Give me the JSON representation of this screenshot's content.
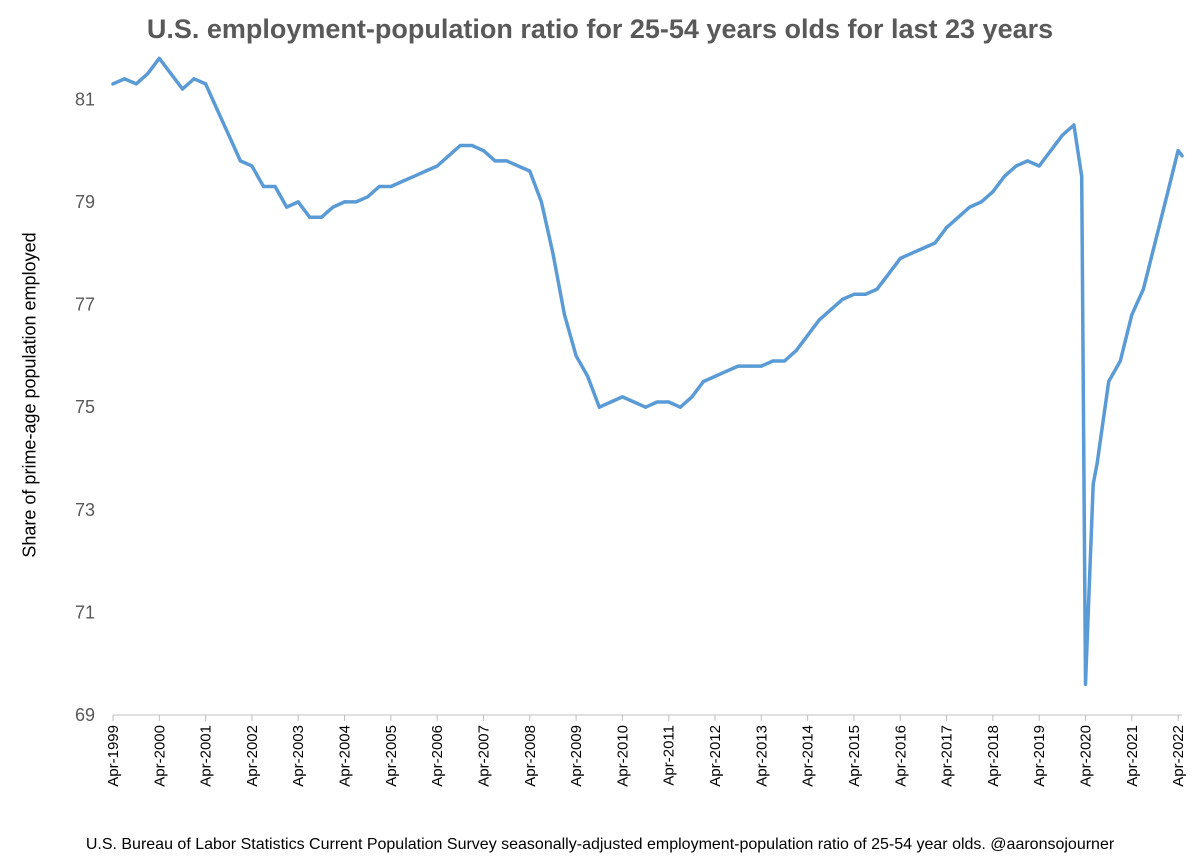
{
  "chart_data": {
    "type": "line",
    "title": "U.S. employment-population ratio for 25-54 years olds for last 23 years",
    "ylabel": "Share of prime-age population employed",
    "xlabel": "",
    "footnote": "U.S. Bureau of Labor Statistics Current Population Survey seasonally-adjusted employment-population ratio of 25-54 year olds. @aaronsojourner",
    "ylim": [
      69,
      82
    ],
    "yticks": [
      69,
      71,
      73,
      75,
      77,
      79,
      81
    ],
    "xticks": [
      "Apr-1999",
      "Apr-2000",
      "Apr-2001",
      "Apr-2002",
      "Apr-2003",
      "Apr-2004",
      "Apr-2005",
      "Apr-2006",
      "Apr-2007",
      "Apr-2008",
      "Apr-2009",
      "Apr-2010",
      "Apr-2011",
      "Apr-2012",
      "Apr-2013",
      "Apr-2014",
      "Apr-2015",
      "Apr-2016",
      "Apr-2017",
      "Apr-2018",
      "Apr-2019",
      "Apr-2020",
      "Apr-2021",
      "Apr-2022"
    ],
    "grid": false,
    "legend": "none",
    "line_color": "#5B9BD5",
    "series": [
      {
        "points": [
          [
            "Apr-1999",
            81.3
          ],
          [
            "Jul-1999",
            81.4
          ],
          [
            "Oct-1999",
            81.3
          ],
          [
            "Jan-2000",
            81.5
          ],
          [
            "Apr-2000",
            81.8
          ],
          [
            "Jul-2000",
            81.5
          ],
          [
            "Oct-2000",
            81.2
          ],
          [
            "Jan-2001",
            81.4
          ],
          [
            "Apr-2001",
            81.3
          ],
          [
            "Jul-2001",
            80.8
          ],
          [
            "Oct-2001",
            80.3
          ],
          [
            "Jan-2002",
            79.8
          ],
          [
            "Apr-2002",
            79.7
          ],
          [
            "Jul-2002",
            79.3
          ],
          [
            "Oct-2002",
            79.3
          ],
          [
            "Jan-2003",
            78.9
          ],
          [
            "Apr-2003",
            79.0
          ],
          [
            "Jul-2003",
            78.7
          ],
          [
            "Oct-2003",
            78.7
          ],
          [
            "Jan-2004",
            78.9
          ],
          [
            "Apr-2004",
            79.0
          ],
          [
            "Jul-2004",
            79.0
          ],
          [
            "Oct-2004",
            79.1
          ],
          [
            "Jan-2005",
            79.3
          ],
          [
            "Apr-2005",
            79.3
          ],
          [
            "Jul-2005",
            79.4
          ],
          [
            "Oct-2005",
            79.5
          ],
          [
            "Jan-2006",
            79.6
          ],
          [
            "Apr-2006",
            79.7
          ],
          [
            "Jul-2006",
            79.9
          ],
          [
            "Oct-2006",
            80.1
          ],
          [
            "Jan-2007",
            80.1
          ],
          [
            "Apr-2007",
            80.0
          ],
          [
            "Jul-2007",
            79.8
          ],
          [
            "Oct-2007",
            79.8
          ],
          [
            "Jan-2008",
            79.7
          ],
          [
            "Apr-2008",
            79.6
          ],
          [
            "Jul-2008",
            79.0
          ],
          [
            "Oct-2008",
            78.0
          ],
          [
            "Jan-2009",
            76.8
          ],
          [
            "Apr-2009",
            76.0
          ],
          [
            "Jul-2009",
            75.6
          ],
          [
            "Oct-2009",
            75.0
          ],
          [
            "Jan-2010",
            75.1
          ],
          [
            "Apr-2010",
            75.2
          ],
          [
            "Jul-2010",
            75.1
          ],
          [
            "Oct-2010",
            75.0
          ],
          [
            "Jan-2011",
            75.1
          ],
          [
            "Apr-2011",
            75.1
          ],
          [
            "Jul-2011",
            75.0
          ],
          [
            "Oct-2011",
            75.2
          ],
          [
            "Jan-2012",
            75.5
          ],
          [
            "Apr-2012",
            75.6
          ],
          [
            "Jul-2012",
            75.7
          ],
          [
            "Oct-2012",
            75.8
          ],
          [
            "Jan-2013",
            75.8
          ],
          [
            "Apr-2013",
            75.8
          ],
          [
            "Jul-2013",
            75.9
          ],
          [
            "Oct-2013",
            75.9
          ],
          [
            "Jan-2014",
            76.1
          ],
          [
            "Apr-2014",
            76.4
          ],
          [
            "Jul-2014",
            76.7
          ],
          [
            "Oct-2014",
            76.9
          ],
          [
            "Jan-2015",
            77.1
          ],
          [
            "Apr-2015",
            77.2
          ],
          [
            "Jul-2015",
            77.2
          ],
          [
            "Oct-2015",
            77.3
          ],
          [
            "Jan-2016",
            77.6
          ],
          [
            "Apr-2016",
            77.9
          ],
          [
            "Jul-2016",
            78.0
          ],
          [
            "Oct-2016",
            78.1
          ],
          [
            "Jan-2017",
            78.2
          ],
          [
            "Apr-2017",
            78.5
          ],
          [
            "Jul-2017",
            78.7
          ],
          [
            "Oct-2017",
            78.9
          ],
          [
            "Jan-2018",
            79.0
          ],
          [
            "Apr-2018",
            79.2
          ],
          [
            "Jul-2018",
            79.5
          ],
          [
            "Oct-2018",
            79.7
          ],
          [
            "Jan-2019",
            79.8
          ],
          [
            "Apr-2019",
            79.7
          ],
          [
            "Jul-2019",
            80.0
          ],
          [
            "Oct-2019",
            80.3
          ],
          [
            "Jan-2020",
            80.5
          ],
          [
            "Mar-2020",
            79.5
          ],
          [
            "Apr-2020",
            69.6
          ],
          [
            "Jun-2020",
            73.5
          ],
          [
            "Jul-2020",
            73.9
          ],
          [
            "Oct-2020",
            75.5
          ],
          [
            "Jan-2021",
            75.9
          ],
          [
            "Apr-2021",
            76.8
          ],
          [
            "Jul-2021",
            77.3
          ],
          [
            "Oct-2021",
            78.2
          ],
          [
            "Jan-2022",
            79.1
          ],
          [
            "Apr-2022",
            80.0
          ],
          [
            "May-2022",
            79.9
          ]
        ]
      }
    ]
  }
}
